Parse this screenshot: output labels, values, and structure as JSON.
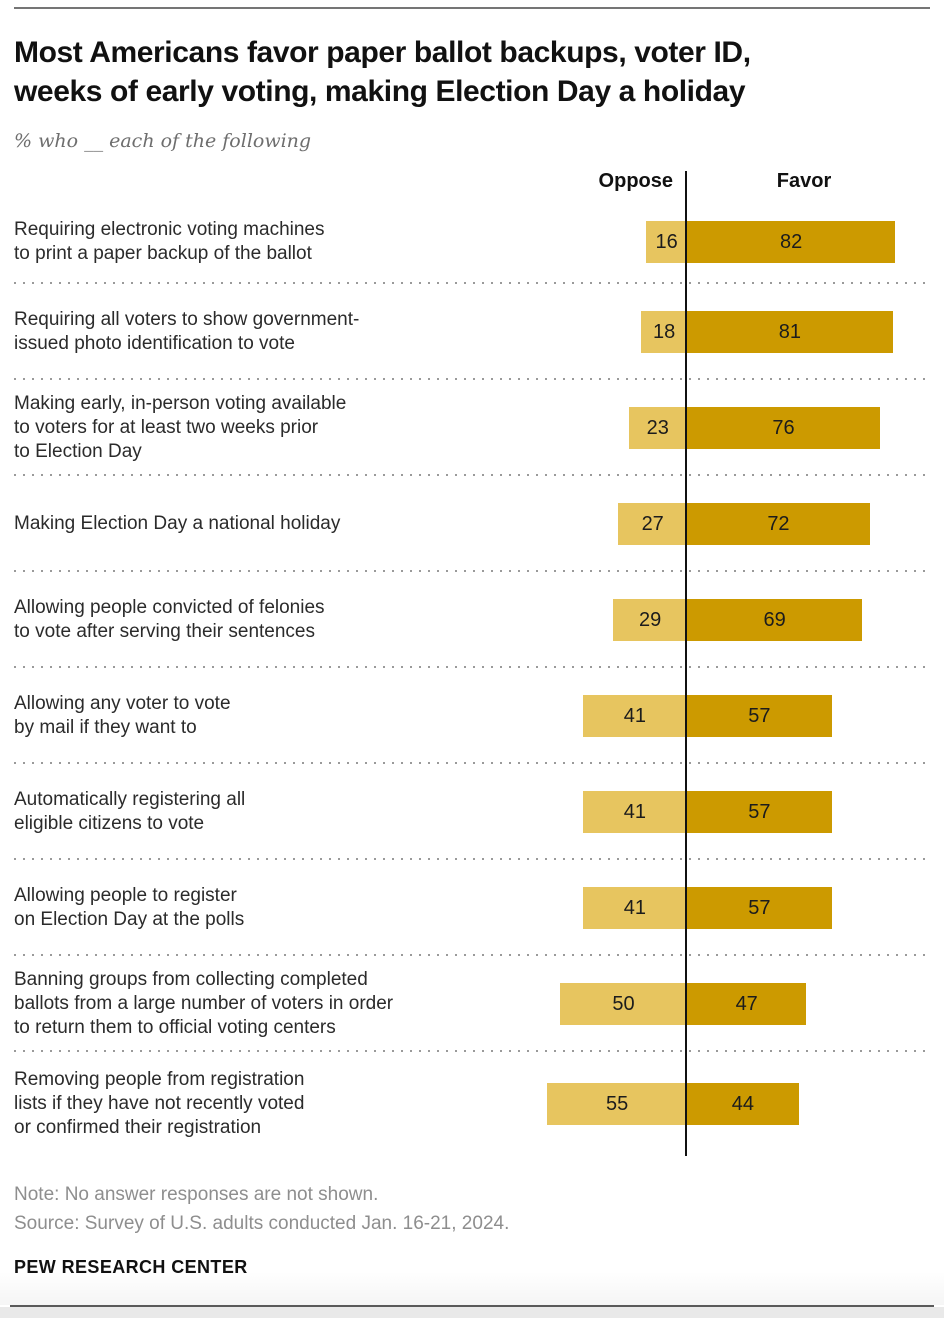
{
  "header": {
    "title": "Most Americans favor paper ballot backups, voter ID,\nweeks of early voting, making Election Day a holiday",
    "subtitle": "% who __ each of the following"
  },
  "chart": {
    "oppose_header": "Oppose",
    "favor_header": "Favor"
  },
  "chart_data": {
    "type": "bar",
    "variant": "horizontal-diverging",
    "categories": [
      [
        "Requiring electronic voting machines",
        "to print a paper backup of the ballot"
      ],
      [
        "Requiring all voters to show government-",
        "issued photo identification to vote"
      ],
      [
        "Making early, in-person voting available",
        "to voters for at least two weeks prior",
        "to Election Day"
      ],
      [
        "Making Election Day a national holiday"
      ],
      [
        "Allowing people convicted of felonies",
        "to vote after serving their sentences"
      ],
      [
        "Allowing any voter to vote",
        "by mail if they want to"
      ],
      [
        "Automatically registering all",
        "eligible citizens to vote"
      ],
      [
        "Allowing people to register",
        "on Election Day at the polls"
      ],
      [
        "Banning groups from collecting completed",
        "ballots from a large number of voters in order",
        "to return them to official voting centers"
      ],
      [
        "Removing people from registration",
        "lists if they have not recently voted",
        "or confirmed their registration"
      ]
    ],
    "series": [
      {
        "name": "Oppose",
        "color": "#E7C55F",
        "values": [
          16,
          18,
          23,
          27,
          29,
          41,
          41,
          41,
          50,
          55
        ]
      },
      {
        "name": "Favor",
        "color": "#CC9A00",
        "values": [
          82,
          81,
          76,
          72,
          69,
          57,
          57,
          57,
          47,
          44
        ]
      }
    ],
    "value_unit": "%",
    "xlim": [
      -60,
      90
    ],
    "grid": "dotted row separators",
    "legend_position": "column headers above zero line"
  },
  "footer": {
    "note": "Note: No answer responses are not shown.",
    "source": "Source: Survey of U.S. adults conducted Jan. 16-21, 2024.",
    "brand": "PEW RESEARCH CENTER"
  }
}
